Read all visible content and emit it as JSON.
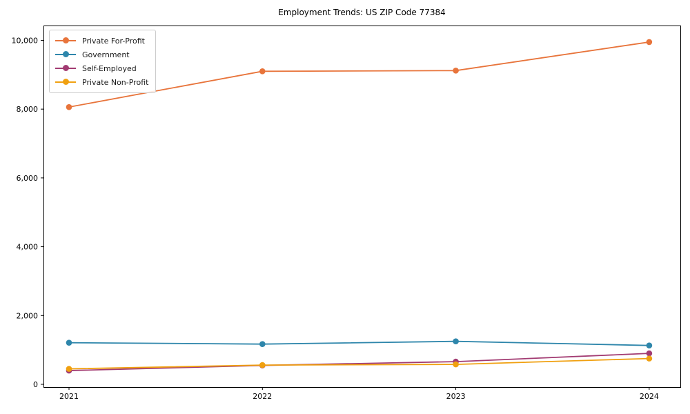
{
  "chart_data": {
    "type": "line",
    "title": "Employment Trends: US ZIP Code 77384",
    "xlabel": "",
    "ylabel": "",
    "x": [
      2021,
      2022,
      2023,
      2024
    ],
    "xtick_labels": [
      "2021",
      "2022",
      "2023",
      "2024"
    ],
    "series": [
      {
        "name": "Private For-Profit",
        "color": "#E8743B",
        "values": [
          8060,
          9100,
          9120,
          9950
        ]
      },
      {
        "name": "Government",
        "color": "#2E86AB",
        "values": [
          1210,
          1170,
          1250,
          1130
        ]
      },
      {
        "name": "Self-Employed",
        "color": "#A23B72",
        "values": [
          400,
          550,
          660,
          900
        ]
      },
      {
        "name": "Private Non-Profit",
        "color": "#F0A010",
        "values": [
          450,
          560,
          580,
          750
        ]
      }
    ],
    "yticks": [
      {
        "v": 0,
        "label": "0"
      },
      {
        "v": 2000,
        "label": "2,000"
      },
      {
        "v": 4000,
        "label": "4,000"
      },
      {
        "v": 6000,
        "label": "6,000"
      },
      {
        "v": 8000,
        "label": "8,000"
      },
      {
        "v": 10000,
        "label": "10,000"
      }
    ],
    "xlim": [
      2020.868,
      2024.161
    ],
    "ylim": [
      -80,
      10430
    ],
    "grid": false,
    "legend_position": "upper-left",
    "frame_color": "#000000",
    "tick_color": "#000000",
    "background": "#ffffff"
  }
}
